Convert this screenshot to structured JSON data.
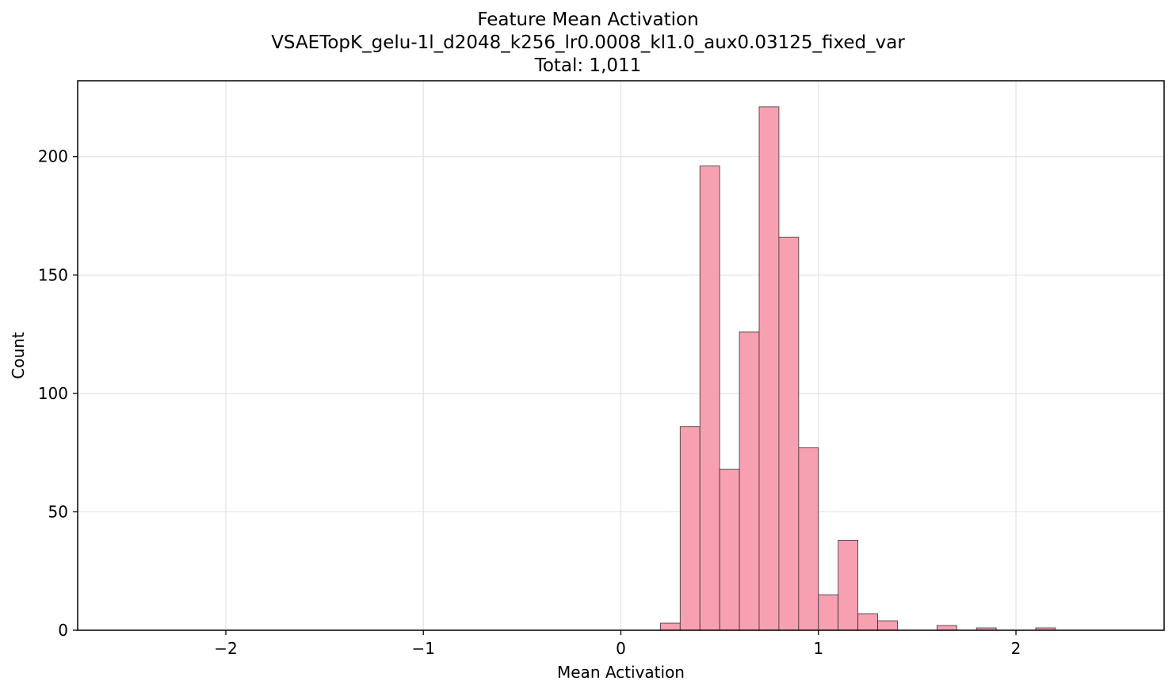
{
  "chart_data": {
    "type": "bar",
    "title": "Feature Mean Activation",
    "subtitle": "VSAETopK_gelu-1l_d2048_k256_lr0.0008_kl1.0_aux0.03125_fixed_var",
    "total_label": "Total: 1,011",
    "xlabel": "Mean Activation",
    "ylabel": "Count",
    "xlim": [
      -2.75,
      2.75
    ],
    "ylim": [
      0,
      232
    ],
    "xticks": [
      -2,
      -1,
      0,
      1,
      2
    ],
    "xtick_labels": [
      "−2",
      "−1",
      "0",
      "1",
      "2"
    ],
    "yticks": [
      0,
      50,
      100,
      150,
      200
    ],
    "ytick_labels": [
      "0",
      "50",
      "100",
      "150",
      "200"
    ],
    "grid": true,
    "bar_color": "#f7a0b1",
    "edge_color": "#333333",
    "bins": [
      {
        "x0": 0.2,
        "x1": 0.3,
        "count": 3
      },
      {
        "x0": 0.3,
        "x1": 0.4,
        "count": 86
      },
      {
        "x0": 0.4,
        "x1": 0.5,
        "count": 196
      },
      {
        "x0": 0.5,
        "x1": 0.6,
        "count": 68
      },
      {
        "x0": 0.6,
        "x1": 0.7,
        "count": 126
      },
      {
        "x0": 0.7,
        "x1": 0.8,
        "count": 221
      },
      {
        "x0": 0.8,
        "x1": 0.9,
        "count": 166
      },
      {
        "x0": 0.9,
        "x1": 1.0,
        "count": 77
      },
      {
        "x0": 1.0,
        "x1": 1.1,
        "count": 15
      },
      {
        "x0": 1.1,
        "x1": 1.2,
        "count": 38
      },
      {
        "x0": 1.2,
        "x1": 1.3,
        "count": 7
      },
      {
        "x0": 1.3,
        "x1": 1.4,
        "count": 4
      },
      {
        "x0": 1.6,
        "x1": 1.7,
        "count": 2
      },
      {
        "x0": 1.8,
        "x1": 1.9,
        "count": 1
      },
      {
        "x0": 2.1,
        "x1": 2.2,
        "count": 1
      }
    ]
  }
}
